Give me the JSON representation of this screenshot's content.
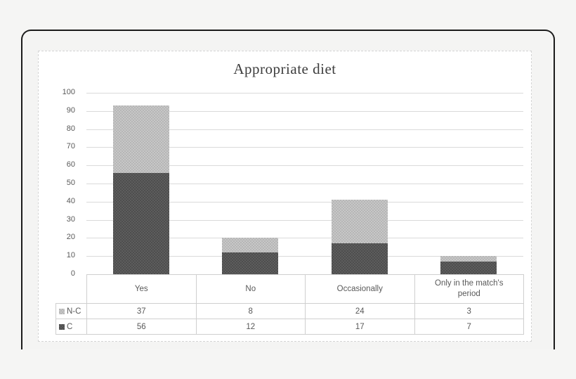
{
  "page": {
    "background": "#f5f5f4",
    "frame_border_color": "#1b1b1b"
  },
  "chart_data": {
    "type": "bar",
    "stacked": true,
    "title": "Appropriate diet",
    "categories": [
      "Yes",
      "No",
      "Occasionally",
      "Only in the match's period"
    ],
    "series": [
      {
        "name": "N-C",
        "values": [
          37,
          8,
          24,
          3
        ],
        "color": "#bfbfbf"
      },
      {
        "name": "C",
        "values": [
          56,
          12,
          17,
          7
        ],
        "color": "#555555"
      }
    ],
    "totals": [
      93,
      20,
      41,
      10
    ],
    "xlabel": "",
    "ylabel": "",
    "ylim": [
      0,
      100
    ],
    "ytick_step": 10,
    "yticks": [
      0,
      10,
      20,
      30,
      40,
      50,
      60,
      70,
      80,
      90,
      100
    ],
    "grid": true,
    "gridline_color": "#dadada",
    "text_color": "#595959",
    "legend_position": "data-table-left",
    "data_table_shown": true
  }
}
